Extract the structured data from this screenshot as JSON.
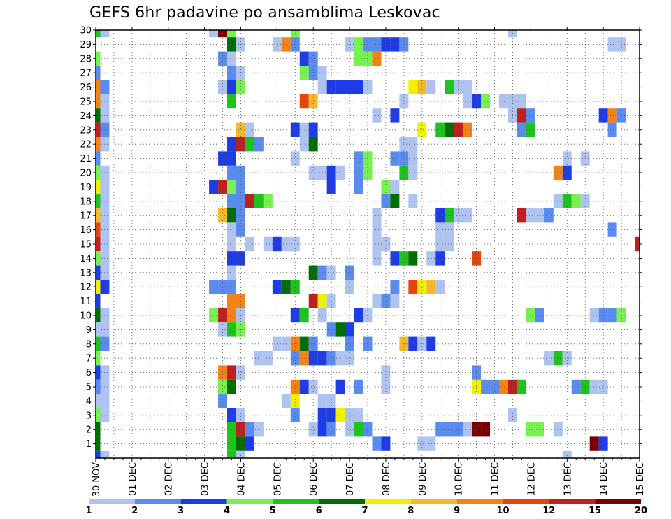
{
  "title": "GEFS 6hr padavine po ansamblima Leskovac",
  "chart_data": {
    "type": "heatmap",
    "title": "GEFS 6hr padavine po ansamblima Leskovac",
    "x_ticks": [
      "30 NOV",
      "01 DEC",
      "02 DEC",
      "03 DEC",
      "04 DEC",
      "05 DEC",
      "06 DEC",
      "07 DEC",
      "08 DEC",
      "09 DEC",
      "10 DEC",
      "11 DEC",
      "12 DEC",
      "13 DEC",
      "14 DEC",
      "15 DEC"
    ],
    "y_ticks": [
      1,
      2,
      3,
      4,
      5,
      6,
      7,
      8,
      9,
      10,
      11,
      12,
      13,
      14,
      15,
      16,
      17,
      18,
      19,
      20,
      21,
      22,
      23,
      24,
      25,
      26,
      27,
      28,
      29,
      30
    ],
    "x_steps_per_day": 4,
    "x_steps": 61,
    "colorbar": {
      "labels": [
        "1",
        "2",
        "3",
        "4",
        "5",
        "6",
        "7",
        "8",
        "9",
        "10",
        "12",
        "15",
        "20"
      ],
      "colors": [
        "#afc3f0",
        "#5a8cf0",
        "#1e3ce6",
        "#78f050",
        "#1ec31e",
        "#006e00",
        "#f0f000",
        "#f5b928",
        "#f58214",
        "#e6460a",
        "#c31e1e",
        "#780000"
      ]
    },
    "cells": [
      [
        30,
        0,
        5
      ],
      [
        30,
        1,
        1
      ],
      [
        30,
        13,
        1
      ],
      [
        30,
        14,
        12
      ],
      [
        30,
        15,
        4
      ],
      [
        30,
        22,
        4
      ],
      [
        30,
        46,
        1
      ],
      [
        29,
        15,
        6
      ],
      [
        29,
        16,
        1
      ],
      [
        29,
        20,
        1
      ],
      [
        29,
        21,
        9
      ],
      [
        29,
        22,
        2
      ],
      [
        29,
        28,
        1
      ],
      [
        29,
        29,
        4
      ],
      [
        29,
        30,
        2
      ],
      [
        29,
        31,
        2
      ],
      [
        29,
        32,
        3
      ],
      [
        29,
        33,
        3
      ],
      [
        29,
        34,
        2
      ],
      [
        29,
        57,
        1
      ],
      [
        29,
        58,
        1
      ],
      [
        28,
        0,
        4
      ],
      [
        28,
        14,
        2
      ],
      [
        28,
        15,
        1
      ],
      [
        28,
        23,
        3
      ],
      [
        28,
        24,
        2
      ],
      [
        28,
        29,
        4
      ],
      [
        28,
        30,
        4
      ],
      [
        28,
        31,
        9
      ],
      [
        27,
        0,
        2
      ],
      [
        27,
        15,
        2
      ],
      [
        27,
        16,
        1
      ],
      [
        27,
        23,
        4
      ],
      [
        27,
        24,
        2
      ],
      [
        27,
        25,
        1
      ],
      [
        26,
        0,
        9
      ],
      [
        26,
        1,
        2
      ],
      [
        26,
        14,
        1
      ],
      [
        26,
        15,
        3
      ],
      [
        26,
        16,
        4
      ],
      [
        26,
        25,
        1
      ],
      [
        26,
        26,
        3
      ],
      [
        26,
        27,
        3
      ],
      [
        26,
        28,
        3
      ],
      [
        26,
        29,
        3
      ],
      [
        26,
        30,
        1
      ],
      [
        26,
        35,
        7
      ],
      [
        26,
        36,
        8
      ],
      [
        26,
        37,
        1
      ],
      [
        26,
        39,
        5
      ],
      [
        26,
        40,
        1
      ],
      [
        26,
        41,
        1
      ],
      [
        25,
        0,
        9
      ],
      [
        25,
        1,
        1
      ],
      [
        25,
        15,
        5
      ],
      [
        25,
        23,
        10
      ],
      [
        25,
        24,
        8
      ],
      [
        25,
        34,
        1
      ],
      [
        25,
        41,
        1
      ],
      [
        25,
        42,
        3
      ],
      [
        25,
        43,
        4
      ],
      [
        25,
        45,
        1
      ],
      [
        25,
        46,
        1
      ],
      [
        25,
        47,
        1
      ],
      [
        24,
        0,
        6
      ],
      [
        24,
        1,
        1
      ],
      [
        24,
        31,
        1
      ],
      [
        24,
        33,
        3
      ],
      [
        24,
        46,
        1
      ],
      [
        24,
        47,
        11
      ],
      [
        24,
        48,
        2
      ],
      [
        24,
        56,
        3
      ],
      [
        24,
        57,
        9
      ],
      [
        24,
        58,
        2
      ],
      [
        23,
        0,
        11
      ],
      [
        23,
        1,
        2
      ],
      [
        23,
        16,
        8
      ],
      [
        23,
        17,
        1
      ],
      [
        23,
        22,
        3
      ],
      [
        23,
        23,
        1
      ],
      [
        23,
        24,
        3
      ],
      [
        23,
        36,
        7
      ],
      [
        23,
        38,
        5
      ],
      [
        23,
        39,
        6
      ],
      [
        23,
        40,
        11
      ],
      [
        23,
        41,
        9
      ],
      [
        23,
        47,
        2
      ],
      [
        23,
        48,
        5
      ],
      [
        23,
        57,
        2
      ],
      [
        22,
        0,
        9
      ],
      [
        22,
        1,
        1
      ],
      [
        22,
        15,
        3
      ],
      [
        22,
        16,
        11
      ],
      [
        22,
        17,
        5
      ],
      [
        22,
        18,
        2
      ],
      [
        22,
        23,
        1
      ],
      [
        22,
        24,
        6
      ],
      [
        22,
        34,
        1
      ],
      [
        22,
        35,
        1
      ],
      [
        21,
        0,
        2
      ],
      [
        21,
        14,
        3
      ],
      [
        21,
        15,
        3
      ],
      [
        21,
        22,
        1
      ],
      [
        21,
        29,
        2
      ],
      [
        21,
        30,
        4
      ],
      [
        21,
        33,
        2
      ],
      [
        21,
        34,
        2
      ],
      [
        21,
        35,
        1
      ],
      [
        21,
        52,
        1
      ],
      [
        21,
        54,
        1
      ],
      [
        20,
        0,
        4
      ],
      [
        20,
        1,
        1
      ],
      [
        20,
        15,
        2
      ],
      [
        20,
        16,
        2
      ],
      [
        20,
        24,
        1
      ],
      [
        20,
        25,
        1
      ],
      [
        20,
        26,
        3
      ],
      [
        20,
        27,
        1
      ],
      [
        20,
        29,
        2
      ],
      [
        20,
        30,
        4
      ],
      [
        20,
        34,
        5
      ],
      [
        20,
        35,
        1
      ],
      [
        20,
        51,
        9
      ],
      [
        20,
        52,
        3
      ],
      [
        19,
        0,
        7
      ],
      [
        19,
        1,
        1
      ],
      [
        19,
        13,
        3
      ],
      [
        19,
        14,
        11
      ],
      [
        19,
        15,
        4
      ],
      [
        19,
        16,
        2
      ],
      [
        19,
        26,
        3
      ],
      [
        19,
        29,
        2
      ],
      [
        19,
        32,
        4
      ],
      [
        19,
        33,
        1
      ],
      [
        18,
        0,
        5
      ],
      [
        18,
        1,
        1
      ],
      [
        18,
        15,
        2
      ],
      [
        18,
        16,
        2
      ],
      [
        18,
        17,
        11
      ],
      [
        18,
        18,
        5
      ],
      [
        18,
        19,
        4
      ],
      [
        18,
        32,
        2
      ],
      [
        18,
        33,
        6
      ],
      [
        18,
        35,
        1
      ],
      [
        18,
        51,
        1
      ],
      [
        18,
        52,
        5
      ],
      [
        18,
        53,
        4
      ],
      [
        18,
        54,
        1
      ],
      [
        17,
        0,
        8
      ],
      [
        17,
        1,
        1
      ],
      [
        17,
        14,
        8
      ],
      [
        17,
        15,
        6
      ],
      [
        17,
        16,
        2
      ],
      [
        17,
        31,
        1
      ],
      [
        17,
        38,
        3
      ],
      [
        17,
        39,
        5
      ],
      [
        17,
        40,
        1
      ],
      [
        17,
        41,
        1
      ],
      [
        17,
        47,
        11
      ],
      [
        17,
        48,
        1
      ],
      [
        17,
        49,
        1
      ],
      [
        17,
        50,
        2
      ],
      [
        16,
        0,
        10
      ],
      [
        16,
        1,
        1
      ],
      [
        16,
        15,
        1
      ],
      [
        16,
        16,
        2
      ],
      [
        16,
        31,
        1
      ],
      [
        16,
        38,
        1
      ],
      [
        16,
        39,
        1
      ],
      [
        16,
        57,
        2
      ],
      [
        15,
        0,
        11
      ],
      [
        15,
        1,
        1
      ],
      [
        15,
        15,
        1
      ],
      [
        15,
        17,
        1
      ],
      [
        15,
        19,
        1
      ],
      [
        15,
        20,
        3
      ],
      [
        15,
        21,
        1
      ],
      [
        15,
        22,
        1
      ],
      [
        15,
        31,
        1
      ],
      [
        15,
        32,
        1
      ],
      [
        15,
        38,
        1
      ],
      [
        15,
        39,
        1
      ],
      [
        15,
        60,
        11
      ],
      [
        14,
        0,
        4
      ],
      [
        14,
        1,
        1
      ],
      [
        14,
        15,
        3
      ],
      [
        14,
        16,
        3
      ],
      [
        14,
        31,
        1
      ],
      [
        14,
        33,
        3
      ],
      [
        14,
        34,
        5
      ],
      [
        14,
        35,
        6
      ],
      [
        14,
        37,
        1
      ],
      [
        14,
        38,
        3
      ],
      [
        14,
        42,
        10
      ],
      [
        13,
        0,
        3
      ],
      [
        13,
        1,
        1
      ],
      [
        13,
        15,
        1
      ],
      [
        13,
        24,
        6
      ],
      [
        13,
        25,
        2
      ],
      [
        13,
        26,
        1
      ],
      [
        13,
        28,
        2
      ],
      [
        12,
        0,
        7
      ],
      [
        12,
        1,
        3
      ],
      [
        12,
        13,
        2
      ],
      [
        12,
        14,
        2
      ],
      [
        12,
        15,
        2
      ],
      [
        12,
        20,
        3
      ],
      [
        12,
        21,
        6
      ],
      [
        12,
        22,
        5
      ],
      [
        12,
        28,
        1
      ],
      [
        12,
        33,
        2
      ],
      [
        12,
        35,
        10
      ],
      [
        12,
        36,
        7
      ],
      [
        12,
        37,
        8
      ],
      [
        12,
        38,
        1
      ],
      [
        11,
        0,
        3
      ],
      [
        11,
        15,
        9
      ],
      [
        11,
        16,
        9
      ],
      [
        11,
        24,
        11
      ],
      [
        11,
        25,
        7
      ],
      [
        11,
        26,
        1
      ],
      [
        11,
        31,
        1
      ],
      [
        11,
        32,
        2
      ],
      [
        11,
        33,
        1
      ],
      [
        10,
        0,
        6
      ],
      [
        10,
        1,
        1
      ],
      [
        10,
        13,
        4
      ],
      [
        10,
        14,
        11
      ],
      [
        10,
        15,
        9
      ],
      [
        10,
        16,
        1
      ],
      [
        10,
        22,
        3
      ],
      [
        10,
        23,
        5
      ],
      [
        10,
        25,
        1
      ],
      [
        10,
        29,
        3
      ],
      [
        10,
        30,
        1
      ],
      [
        10,
        48,
        4
      ],
      [
        10,
        49,
        2
      ],
      [
        10,
        55,
        1
      ],
      [
        10,
        56,
        2
      ],
      [
        10,
        57,
        2
      ],
      [
        10,
        58,
        4
      ],
      [
        9,
        0,
        1
      ],
      [
        9,
        1,
        1
      ],
      [
        9,
        14,
        1
      ],
      [
        9,
        15,
        5
      ],
      [
        9,
        16,
        4
      ],
      [
        9,
        26,
        2
      ],
      [
        9,
        27,
        6
      ],
      [
        9,
        28,
        3
      ],
      [
        8,
        0,
        5
      ],
      [
        8,
        1,
        2
      ],
      [
        8,
        20,
        1
      ],
      [
        8,
        21,
        1
      ],
      [
        8,
        22,
        9
      ],
      [
        8,
        23,
        6
      ],
      [
        8,
        24,
        2
      ],
      [
        8,
        28,
        2
      ],
      [
        8,
        30,
        2
      ],
      [
        8,
        34,
        8
      ],
      [
        8,
        35,
        3
      ],
      [
        8,
        36,
        1
      ],
      [
        8,
        37,
        3
      ],
      [
        7,
        0,
        4
      ],
      [
        7,
        18,
        1
      ],
      [
        7,
        19,
        1
      ],
      [
        7,
        22,
        2
      ],
      [
        7,
        23,
        9
      ],
      [
        7,
        24,
        3
      ],
      [
        7,
        25,
        3
      ],
      [
        7,
        26,
        2
      ],
      [
        7,
        27,
        1
      ],
      [
        7,
        28,
        1
      ],
      [
        7,
        50,
        1
      ],
      [
        7,
        51,
        5
      ],
      [
        7,
        52,
        1
      ],
      [
        6,
        0,
        3
      ],
      [
        6,
        1,
        1
      ],
      [
        6,
        14,
        9
      ],
      [
        6,
        15,
        11
      ],
      [
        6,
        16,
        1
      ],
      [
        6,
        32,
        1
      ],
      [
        6,
        42,
        2
      ],
      [
        5,
        0,
        2
      ],
      [
        5,
        1,
        1
      ],
      [
        5,
        14,
        4
      ],
      [
        5,
        15,
        6
      ],
      [
        5,
        22,
        9
      ],
      [
        5,
        23,
        3
      ],
      [
        5,
        24,
        1
      ],
      [
        5,
        27,
        3
      ],
      [
        5,
        29,
        2
      ],
      [
        5,
        32,
        1
      ],
      [
        5,
        42,
        7
      ],
      [
        5,
        43,
        2
      ],
      [
        5,
        44,
        2
      ],
      [
        5,
        45,
        9
      ],
      [
        5,
        46,
        11
      ],
      [
        5,
        47,
        5
      ],
      [
        5,
        53,
        2
      ],
      [
        5,
        54,
        5
      ],
      [
        5,
        55,
        1
      ],
      [
        5,
        56,
        1
      ],
      [
        4,
        0,
        1
      ],
      [
        4,
        1,
        1
      ],
      [
        4,
        14,
        2
      ],
      [
        4,
        21,
        1
      ],
      [
        4,
        22,
        7
      ],
      [
        4,
        25,
        1
      ],
      [
        4,
        26,
        1
      ],
      [
        3,
        0,
        4
      ],
      [
        3,
        1,
        1
      ],
      [
        3,
        15,
        3
      ],
      [
        3,
        16,
        1
      ],
      [
        3,
        22,
        2
      ],
      [
        3,
        25,
        3
      ],
      [
        3,
        26,
        3
      ],
      [
        3,
        27,
        7
      ],
      [
        3,
        28,
        1
      ],
      [
        3,
        29,
        1
      ],
      [
        3,
        46,
        1
      ],
      [
        2,
        0,
        6
      ],
      [
        2,
        15,
        5
      ],
      [
        2,
        16,
        11
      ],
      [
        2,
        17,
        2
      ],
      [
        2,
        18,
        1
      ],
      [
        2,
        24,
        1
      ],
      [
        2,
        25,
        3
      ],
      [
        2,
        26,
        2
      ],
      [
        2,
        28,
        1
      ],
      [
        2,
        29,
        5
      ],
      [
        2,
        30,
        2
      ],
      [
        2,
        38,
        2
      ],
      [
        2,
        39,
        2
      ],
      [
        2,
        40,
        2
      ],
      [
        2,
        41,
        1
      ],
      [
        2,
        42,
        12
      ],
      [
        2,
        43,
        12
      ],
      [
        2,
        48,
        4
      ],
      [
        2,
        49,
        4
      ],
      [
        2,
        51,
        1
      ],
      [
        1,
        0,
        6
      ],
      [
        1,
        15,
        5
      ],
      [
        1,
        16,
        6
      ],
      [
        1,
        17,
        3
      ],
      [
        1,
        31,
        2
      ],
      [
        1,
        32,
        3
      ],
      [
        1,
        36,
        1
      ],
      [
        1,
        37,
        1
      ],
      [
        1,
        55,
        12
      ],
      [
        1,
        56,
        3
      ],
      [
        0,
        0,
        3
      ],
      [
        0,
        1,
        1
      ],
      [
        0,
        15,
        5
      ],
      [
        0,
        16,
        1
      ],
      [
        0,
        52,
        1
      ]
    ]
  }
}
